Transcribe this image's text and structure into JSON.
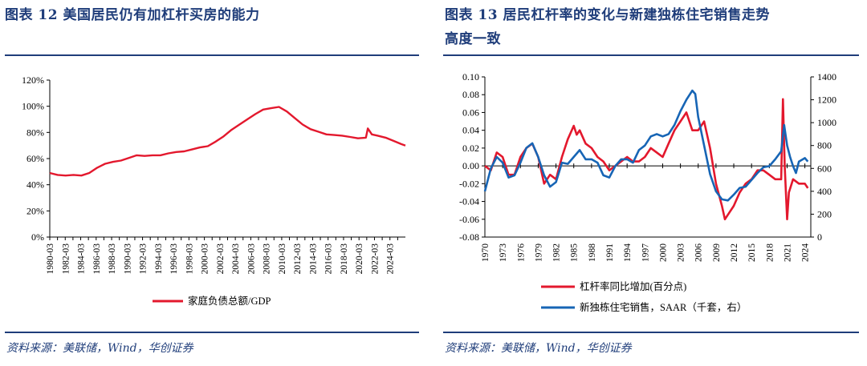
{
  "left": {
    "title": "图表 12   美国居民仍有加杠杆买房的能力",
    "source": "资料来源：美联储，Wind，华创证券",
    "chart_data": {
      "type": "line",
      "x_tick_labels": [
        "1980-03",
        "1982-03",
        "1984-03",
        "1986-03",
        "1988-03",
        "1990-03",
        "1992-03",
        "1994-03",
        "1996-03",
        "1998-03",
        "2000-03",
        "2002-03",
        "2004-03",
        "2006-03",
        "2008-03",
        "2010-03",
        "2012-03",
        "2014-03",
        "2016-03",
        "2018-03",
        "2020-03",
        "2022-03",
        "2024-03"
      ],
      "y_tick_labels": [
        "0%",
        "20%",
        "40%",
        "60%",
        "80%",
        "100%",
        "120%"
      ],
      "ylim": [
        0,
        1.2
      ],
      "xlim": [
        1980.0,
        2025.0
      ],
      "legend_position": "bottom",
      "series": [
        {
          "name": "家庭负债总额/GDP",
          "color": "#e3182d",
          "points": [
            [
              1980.0,
              0.49
            ],
            [
              1981.0,
              0.475
            ],
            [
              1982.0,
              0.47
            ],
            [
              1983.0,
              0.475
            ],
            [
              1984.0,
              0.47
            ],
            [
              1985.0,
              0.49
            ],
            [
              1986.0,
              0.53
            ],
            [
              1987.0,
              0.56
            ],
            [
              1988.0,
              0.575
            ],
            [
              1989.0,
              0.585
            ],
            [
              1990.0,
              0.605
            ],
            [
              1991.0,
              0.625
            ],
            [
              1992.0,
              0.62
            ],
            [
              1993.0,
              0.625
            ],
            [
              1994.0,
              0.625
            ],
            [
              1995.0,
              0.64
            ],
            [
              1996.0,
              0.65
            ],
            [
              1997.0,
              0.655
            ],
            [
              1998.0,
              0.67
            ],
            [
              1999.0,
              0.685
            ],
            [
              2000.0,
              0.695
            ],
            [
              2001.0,
              0.73
            ],
            [
              2002.0,
              0.77
            ],
            [
              2003.0,
              0.82
            ],
            [
              2004.0,
              0.86
            ],
            [
              2005.0,
              0.9
            ],
            [
              2006.0,
              0.94
            ],
            [
              2007.0,
              0.975
            ],
            [
              2008.0,
              0.985
            ],
            [
              2009.0,
              0.995
            ],
            [
              2010.0,
              0.96
            ],
            [
              2011.0,
              0.91
            ],
            [
              2012.0,
              0.86
            ],
            [
              2013.0,
              0.825
            ],
            [
              2014.0,
              0.805
            ],
            [
              2015.0,
              0.785
            ],
            [
              2016.0,
              0.78
            ],
            [
              2017.0,
              0.775
            ],
            [
              2018.0,
              0.765
            ],
            [
              2019.0,
              0.755
            ],
            [
              2020.0,
              0.76
            ],
            [
              2020.25,
              0.83
            ],
            [
              2020.75,
              0.785
            ],
            [
              2021.5,
              0.775
            ],
            [
              2022.5,
              0.76
            ],
            [
              2023.5,
              0.735
            ],
            [
              2024.5,
              0.71
            ],
            [
              2025.0,
              0.7
            ]
          ]
        }
      ]
    }
  },
  "right": {
    "title_line1": "图表 13   居民杠杆率的变化与新建独栋住宅销售走势",
    "title_line2": "高度一致",
    "source": "资料来源：美联储，Wind，华创证券",
    "chart_data": {
      "type": "line",
      "x_tick_labels": [
        "1970",
        "1973",
        "1976",
        "1979",
        "1982",
        "1985",
        "1988",
        "1991",
        "1994",
        "1997",
        "2000",
        "2003",
        "2006",
        "2009",
        "2012",
        "2015",
        "2018",
        "2021",
        "2024"
      ],
      "y_left_tick_labels": [
        "-0.08",
        "-0.06",
        "-0.04",
        "-0.02",
        "0.00",
        "0.02",
        "0.04",
        "0.06",
        "0.08",
        "0.10"
      ],
      "y_right_tick_labels": [
        "0",
        "200",
        "400",
        "600",
        "800",
        "1000",
        "1200",
        "1400"
      ],
      "ylim_left": [
        -0.08,
        0.1
      ],
      "ylim_right": [
        0,
        1400
      ],
      "xlim": [
        1970.0,
        2025.0
      ],
      "legend_position": "bottom",
      "series": [
        {
          "name": "杠杆率同比增加(百分点)",
          "axis": "left",
          "color": "#e3182d",
          "points": [
            [
              1970.0,
              0.0
            ],
            [
              1971.0,
              -0.005
            ],
            [
              1972.0,
              0.015
            ],
            [
              1973.0,
              0.01
            ],
            [
              1974.0,
              -0.01
            ],
            [
              1975.0,
              -0.01
            ],
            [
              1976.0,
              0.01
            ],
            [
              1977.0,
              0.02
            ],
            [
              1978.0,
              0.025
            ],
            [
              1979.0,
              0.01
            ],
            [
              1980.0,
              -0.02
            ],
            [
              1981.0,
              -0.01
            ],
            [
              1982.0,
              -0.015
            ],
            [
              1983.0,
              0.01
            ],
            [
              1984.0,
              0.03
            ],
            [
              1985.0,
              0.045
            ],
            [
              1985.5,
              0.035
            ],
            [
              1986.0,
              0.04
            ],
            [
              1987.0,
              0.025
            ],
            [
              1988.0,
              0.02
            ],
            [
              1989.0,
              0.01
            ],
            [
              1990.0,
              0.005
            ],
            [
              1991.0,
              -0.005
            ],
            [
              1992.0,
              0.0
            ],
            [
              1993.0,
              0.005
            ],
            [
              1994.0,
              0.01
            ],
            [
              1995.0,
              0.005
            ],
            [
              1996.0,
              0.005
            ],
            [
              1997.0,
              0.01
            ],
            [
              1998.0,
              0.02
            ],
            [
              1999.0,
              0.015
            ],
            [
              2000.0,
              0.01
            ],
            [
              2001.0,
              0.025
            ],
            [
              2002.0,
              0.04
            ],
            [
              2003.0,
              0.05
            ],
            [
              2004.0,
              0.06
            ],
            [
              2005.0,
              0.04
            ],
            [
              2006.0,
              0.04
            ],
            [
              2007.0,
              0.05
            ],
            [
              2008.0,
              0.02
            ],
            [
              2009.0,
              -0.02
            ],
            [
              2010.0,
              -0.045
            ],
            [
              2010.5,
              -0.06
            ],
            [
              2011.0,
              -0.055
            ],
            [
              2012.0,
              -0.045
            ],
            [
              2013.0,
              -0.03
            ],
            [
              2014.0,
              -0.02
            ],
            [
              2015.0,
              -0.015
            ],
            [
              2016.0,
              -0.005
            ],
            [
              2017.0,
              -0.005
            ],
            [
              2018.0,
              -0.01
            ],
            [
              2019.0,
              -0.015
            ],
            [
              2020.0,
              -0.015
            ],
            [
              2020.3,
              0.075
            ],
            [
              2020.6,
              0.0
            ],
            [
              2021.0,
              -0.06
            ],
            [
              2021.3,
              -0.03
            ],
            [
              2022.0,
              -0.015
            ],
            [
              2023.0,
              -0.02
            ],
            [
              2024.0,
              -0.02
            ],
            [
              2024.5,
              -0.025
            ]
          ]
        },
        {
          "name": "新独栋住宅销售，SAAR（千套，右）",
          "axis": "right",
          "color": "#1765b5",
          "points": [
            [
              1970.0,
              400
            ],
            [
              1971.0,
              600
            ],
            [
              1972.0,
              700
            ],
            [
              1973.0,
              650
            ],
            [
              1974.0,
              520
            ],
            [
              1975.0,
              540
            ],
            [
              1976.0,
              650
            ],
            [
              1977.0,
              780
            ],
            [
              1978.0,
              820
            ],
            [
              1979.0,
              700
            ],
            [
              1980.0,
              540
            ],
            [
              1981.0,
              440
            ],
            [
              1982.0,
              480
            ],
            [
              1983.0,
              650
            ],
            [
              1984.0,
              640
            ],
            [
              1985.0,
              700
            ],
            [
              1986.0,
              760
            ],
            [
              1987.0,
              680
            ],
            [
              1988.0,
              680
            ],
            [
              1989.0,
              650
            ],
            [
              1990.0,
              540
            ],
            [
              1991.0,
              520
            ],
            [
              1992.0,
              620
            ],
            [
              1993.0,
              680
            ],
            [
              1994.0,
              680
            ],
            [
              1995.0,
              650
            ],
            [
              1996.0,
              760
            ],
            [
              1997.0,
              800
            ],
            [
              1998.0,
              880
            ],
            [
              1999.0,
              900
            ],
            [
              2000.0,
              880
            ],
            [
              2001.0,
              900
            ],
            [
              2002.0,
              980
            ],
            [
              2003.0,
              1100
            ],
            [
              2004.0,
              1200
            ],
            [
              2005.0,
              1280
            ],
            [
              2005.5,
              1250
            ],
            [
              2006.0,
              1050
            ],
            [
              2007.0,
              800
            ],
            [
              2008.0,
              550
            ],
            [
              2009.0,
              400
            ],
            [
              2010.0,
              330
            ],
            [
              2011.0,
              320
            ],
            [
              2012.0,
              370
            ],
            [
              2013.0,
              430
            ],
            [
              2014.0,
              440
            ],
            [
              2015.0,
              500
            ],
            [
              2016.0,
              560
            ],
            [
              2017.0,
              610
            ],
            [
              2018.0,
              620
            ],
            [
              2019.0,
              680
            ],
            [
              2020.0,
              750
            ],
            [
              2020.5,
              980
            ],
            [
              2021.0,
              800
            ],
            [
              2021.5,
              700
            ],
            [
              2022.0,
              620
            ],
            [
              2022.5,
              560
            ],
            [
              2023.0,
              660
            ],
            [
              2024.0,
              690
            ],
            [
              2024.5,
              660
            ]
          ]
        }
      ]
    }
  }
}
